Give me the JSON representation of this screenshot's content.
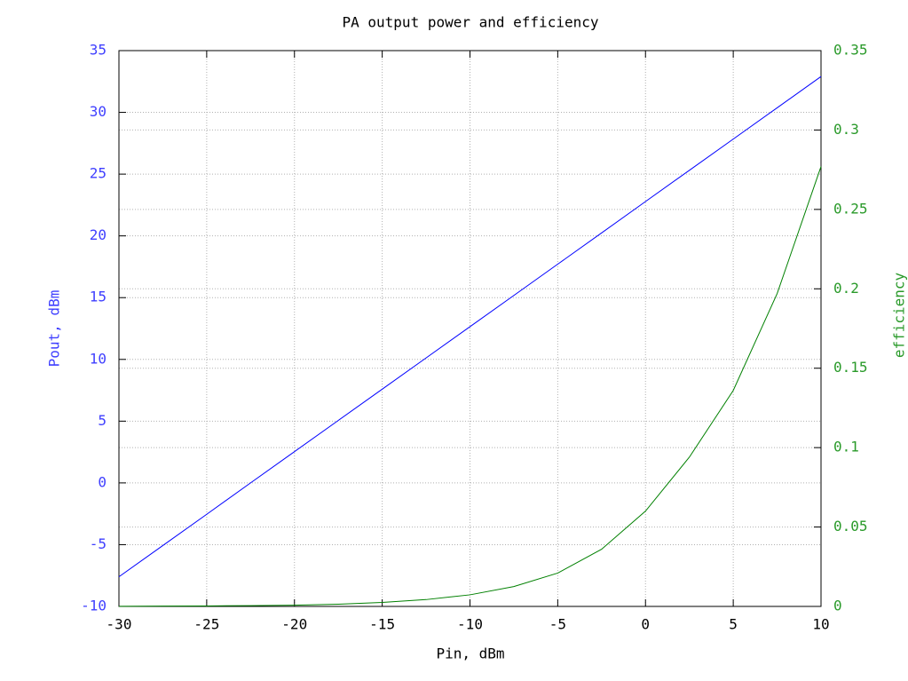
{
  "chart_data": {
    "type": "line",
    "title": "PA output power and efficiency",
    "x_label": "Pin, dBm",
    "y_label": "Pout, dBm",
    "y2_label": "efficiency",
    "y_label_color": "#4040ff",
    "y2_label_color": "#2a9a2a",
    "x": [
      -30,
      -27.5,
      -25,
      -22.5,
      -20,
      -17.5,
      -15,
      -12.5,
      -10,
      -7.5,
      -5,
      -2.5,
      0,
      2.5,
      5,
      7.5,
      10
    ],
    "series": [
      {
        "color": "#0000ff",
        "values": [
          -7.6,
          -5.07,
          -2.54,
          0.0,
          2.53,
          5.06,
          7.59,
          10.12,
          12.65,
          15.18,
          17.71,
          20.24,
          22.78,
          25.31,
          27.84,
          30.37,
          32.9
        ]
      },
      {
        "color": "#008000",
        "axis": "y2",
        "values": [
          0.0001,
          0.0002,
          0.0003,
          0.0005,
          0.0008,
          0.0014,
          0.0025,
          0.0043,
          0.0073,
          0.0125,
          0.021,
          0.036,
          0.06,
          0.094,
          0.136,
          0.197,
          0.277
        ]
      }
    ],
    "xlim": [
      -30,
      10
    ],
    "xticks": [
      -30,
      -25,
      -20,
      -15,
      -10,
      -5,
      0,
      5,
      10
    ],
    "ylim": [
      -10,
      35
    ],
    "yticks": [
      -10,
      -5,
      0,
      5,
      10,
      15,
      20,
      25,
      30,
      35
    ],
    "y2lim": [
      0,
      0.35
    ],
    "y2ticks": [
      0,
      0.05,
      0.1,
      0.15,
      0.2,
      0.25,
      0.3,
      0.35
    ],
    "grid": true
  }
}
